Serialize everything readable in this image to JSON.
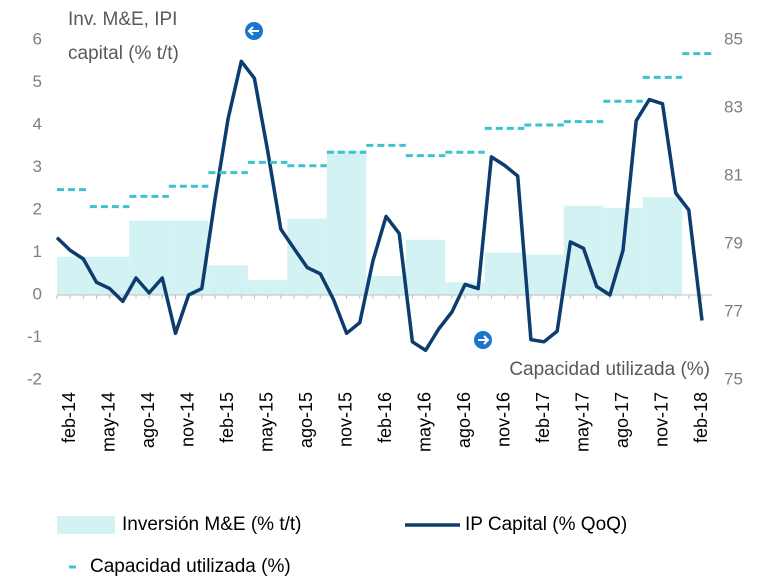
{
  "chart_data": {
    "type": "combo",
    "ylabel": [
      "Inv. M&E, IPI",
      "capital (% t/t)"
    ],
    "y2label": "Capacidad  utilizada (%)",
    "categories": [
      null,
      "feb-14",
      null,
      null,
      "may-14",
      null,
      null,
      "ago-14",
      null,
      null,
      "nov-14",
      null,
      null,
      "feb-15",
      null,
      null,
      "may-15",
      null,
      null,
      "ago-15",
      null,
      null,
      "nov-15",
      null,
      null,
      "feb-16",
      null,
      null,
      "may-16",
      null,
      null,
      "ago-16",
      null,
      null,
      "nov-16",
      null,
      null,
      "feb-17",
      null,
      null,
      "may-17",
      null,
      null,
      "ago-17",
      null,
      null,
      "nov-17",
      null,
      null,
      "feb-18"
    ],
    "series": [
      {
        "name": "Inversión M&E (% t/t)",
        "type": "bar",
        "color": "#d3f2f4",
        "values": [
          null,
          0.9,
          null,
          null,
          0.9,
          null,
          null,
          1.75,
          null,
          null,
          1.75,
          null,
          null,
          0.7,
          null,
          null,
          0.35,
          null,
          null,
          1.8,
          null,
          null,
          3.4,
          null,
          null,
          0.45,
          null,
          null,
          1.3,
          null,
          null,
          0.3,
          null,
          null,
          1.0,
          null,
          null,
          0.95,
          null,
          null,
          2.1,
          null,
          null,
          2.05,
          null,
          null,
          2.3,
          null,
          null,
          null
        ]
      },
      {
        "name": "IP Capital (% QoQ)",
        "type": "line",
        "color": "#0d3c6e",
        "values": [
          1.35,
          1.05,
          0.85,
          0.3,
          0.15,
          -0.15,
          0.4,
          0.05,
          0.4,
          -0.9,
          0,
          0.15,
          2.25,
          4.15,
          5.5,
          5.1,
          3.4,
          1.55,
          1.1,
          0.65,
          0.5,
          -0.1,
          -0.9,
          -0.65,
          0.8,
          1.85,
          1.45,
          -1.1,
          -1.3,
          -0.8,
          -0.4,
          0.25,
          0.15,
          3.25,
          3.05,
          2.8,
          -1.05,
          -1.1,
          -0.85,
          1.25,
          1.1,
          0.2,
          0,
          1.05,
          4.1,
          4.6,
          4.5,
          2.4,
          2.0,
          -0.6
        ]
      },
      {
        "name": "Capacidad utilizada (%)",
        "type": "dash",
        "color": "#3cc3cb",
        "axis": "y2",
        "values": [
          null,
          80.6,
          null,
          null,
          80.1,
          null,
          null,
          80.4,
          null,
          null,
          80.7,
          null,
          null,
          81.1,
          null,
          null,
          81.4,
          null,
          null,
          81.3,
          null,
          null,
          81.7,
          null,
          null,
          81.9,
          null,
          null,
          81.6,
          null,
          null,
          81.7,
          null,
          null,
          82.4,
          null,
          null,
          82.5,
          null,
          null,
          82.6,
          null,
          null,
          83.2,
          null,
          null,
          83.9,
          null,
          null,
          84.6
        ]
      }
    ],
    "ylim": [
      -2,
      6
    ],
    "yticks": [
      -2,
      -1,
      0,
      1,
      2,
      3,
      4,
      5,
      6
    ],
    "y2lim": [
      75,
      85
    ],
    "y2ticks": [
      75,
      77,
      79,
      81,
      83,
      85
    ]
  }
}
